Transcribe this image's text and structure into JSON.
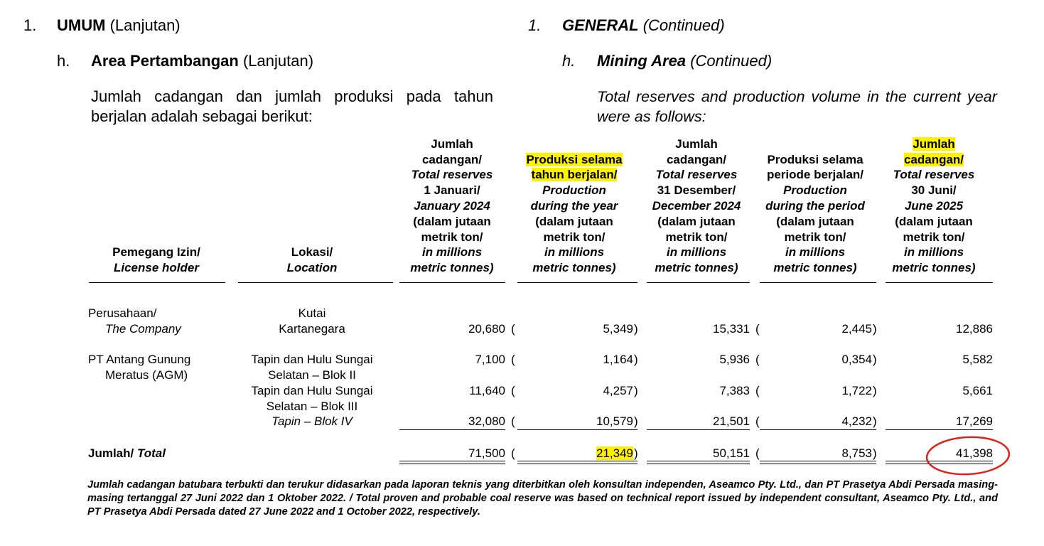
{
  "left": {
    "section_num": "1.",
    "section_title": "UMUM",
    "section_suffix": "(Lanjutan)",
    "sub_num": "h.",
    "sub_title": "Area Pertambangan",
    "sub_suffix": "(Lanjutan)",
    "intro": "Jumlah cadangan dan jumlah produksi pada tahun berjalan adalah sebagai berikut:"
  },
  "right": {
    "section_num": "1.",
    "section_title": "GENERAL",
    "section_suffix": "(Continued)",
    "sub_num": "h.",
    "sub_title": "Mining Area",
    "sub_suffix": "(Continued)",
    "intro": "Total reserves and production volume in the current year were as follows:"
  },
  "table": {
    "headers": [
      [
        "Pemegang Izin/",
        "License holder"
      ],
      [
        "Lokasi/",
        "Location"
      ],
      [
        "Jumlah",
        "cadangan/",
        "Total reserves",
        "1 Januari/",
        "January 2024",
        "(dalam jutaan",
        "metrik ton/",
        "in millions",
        "metric tonnes)"
      ],
      [
        "Produksi selama",
        "tahun berjalan/",
        "Production",
        "during the year",
        "(dalam jutaan",
        "metrik ton/",
        "in millions",
        "metric tonnes)"
      ],
      [
        "Jumlah",
        "cadangan/",
        "Total reserves",
        "31 Desember/",
        "December 2024",
        "(dalam jutaan",
        "metrik ton/",
        "in millions",
        "metric tonnes)"
      ],
      [
        "Produksi selama",
        "periode berjalan/",
        "Production",
        "during the period",
        "(dalam jutaan",
        "metrik ton/",
        "in millions",
        "metric tonnes)"
      ],
      [
        "Jumlah",
        "cadangan/",
        "Total reserves",
        "30 Juni/",
        "June 2025",
        "(dalam jutaan",
        "metrik ton/",
        "in millions",
        "metric tonnes)"
      ]
    ],
    "paren_open": "(",
    "paren_close": ")",
    "rows": [
      {
        "holder": [
          "Perusahaan/",
          "The Company"
        ],
        "location": [
          "Kutai",
          "Kartanegara"
        ],
        "values": [
          "20,680",
          "5,349",
          "15,331",
          "2,445",
          "12,886"
        ]
      },
      {
        "holder": [
          "PT Antang Gunung",
          "Meratus (AGM)"
        ],
        "location": [
          "Tapin dan Hulu Sungai",
          "Selatan – Blok II"
        ],
        "values": [
          "7,100",
          "1,164",
          "5,936",
          "0,354",
          "5,582"
        ]
      },
      {
        "holder": [],
        "location": [
          "Tapin dan Hulu Sungai",
          "Selatan – Blok III"
        ],
        "values": [
          "11,640",
          "4,257",
          "7,383",
          "1,722",
          "5,661"
        ]
      },
      {
        "holder": [],
        "location": [
          "Tapin – Blok IV"
        ],
        "values": [
          "32,080",
          "10,579",
          "21,501",
          "4,232",
          "17,269"
        ]
      }
    ],
    "total": {
      "label": [
        "Jumlah/",
        "Total"
      ],
      "values": [
        "71,500",
        "21,349",
        "50,151",
        "8,753",
        "41,398"
      ]
    }
  },
  "footnote": "Jumlah cadangan batubara terbukti dan terukur didasarkan pada laporan teknis yang diterbitkan oleh konsultan independen, Aseamco Pty. Ltd., dan PT Prasetya Abdi Persada masing-masing tertanggal 27 Juni 2022 dan 1 Oktober 2022. / Total proven and probable coal reserve was based on technical report issued by independent consultant, Aseamco Pty. Ltd., and PT Prasetya Abdi Persada dated 27 June 2022 and 1 October 2022, respectively."
}
